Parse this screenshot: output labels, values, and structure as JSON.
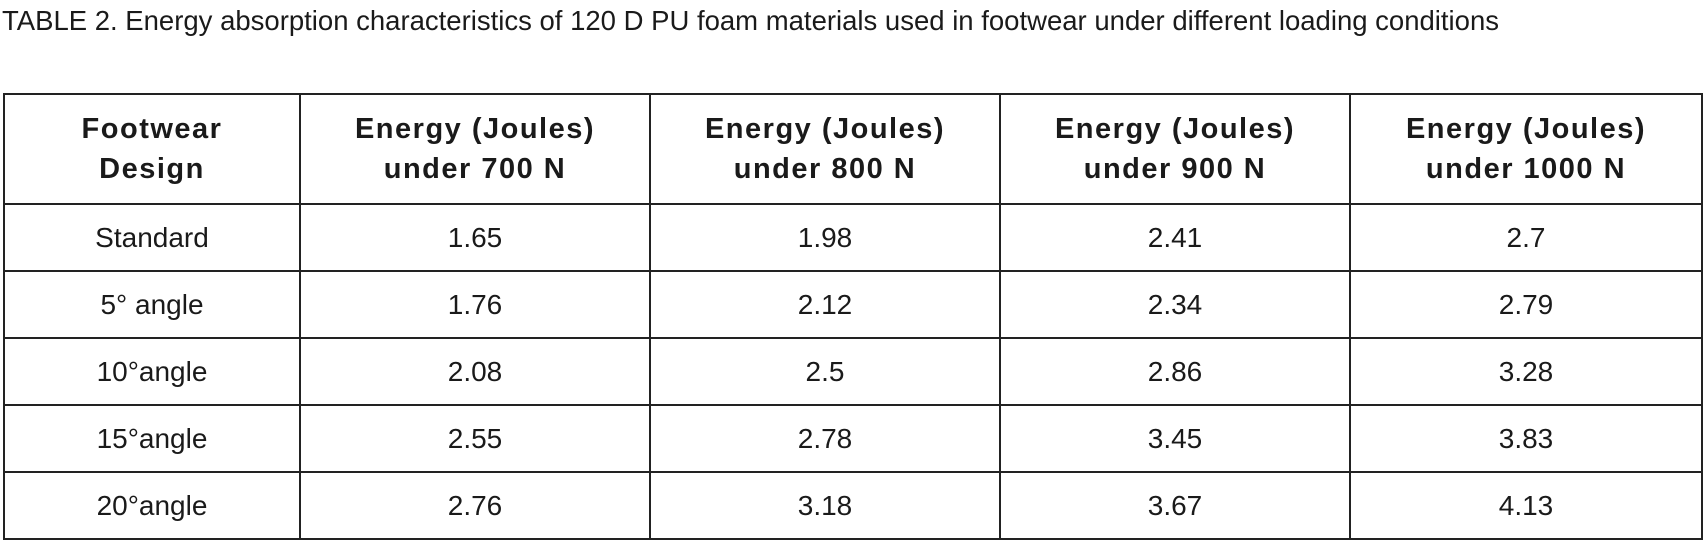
{
  "caption": "TABLE 2. Energy absorption characteristics of 120 D PU foam materials used in footwear under different loading conditions",
  "table": {
    "header": [
      "Footwear Design",
      "Energy (Joules) under 700 N",
      "Energy (Joules) under 800 N",
      "Energy (Joules) under 900 N",
      "Energy (Joules) under 1000 N"
    ],
    "rows": [
      [
        "Standard",
        "1.65",
        "1.98",
        "2.41",
        "2.7"
      ],
      [
        "5° angle",
        "1.76",
        "2.12",
        "2.34",
        "2.79"
      ],
      [
        "10°angle",
        "2.08",
        "2.5",
        "2.86",
        "3.28"
      ],
      [
        "15°angle",
        "2.55",
        "2.78",
        "3.45",
        "3.83"
      ],
      [
        "20°angle",
        "2.76",
        "3.18",
        "3.67",
        "4.13"
      ]
    ]
  }
}
